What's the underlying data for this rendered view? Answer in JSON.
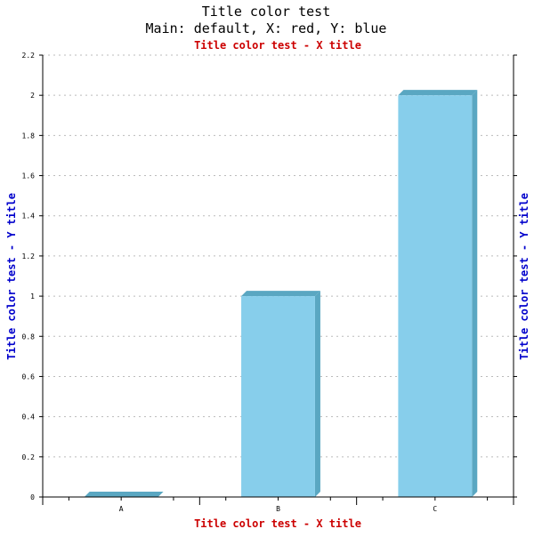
{
  "chart_data": {
    "type": "bar",
    "title": "Title color test",
    "subtitle": "Main: default, X: red, Y: blue",
    "x_title_top": "Title color test - X title",
    "x_title_bottom": "Title color test - X title",
    "y_title_left": "Title color test - Y title",
    "y_title_right": "Title color test - Y title",
    "categories": [
      "A",
      "B",
      "C"
    ],
    "values": [
      0,
      1,
      2
    ],
    "ylim": [
      0,
      2.2
    ],
    "yticks": [
      "0",
      "0.2",
      "0.4",
      "0.6",
      "0.8",
      "1",
      "1.2",
      "1.4",
      "1.6",
      "1.8",
      "2",
      "2.2"
    ],
    "grid": true,
    "colors": {
      "bar_face": "#87ceeb",
      "bar_side": "#5aa7c2",
      "x_title": "#cc0000",
      "y_title": "#0000cc",
      "main_title": "#000000",
      "grid": "#bbbbbb"
    }
  }
}
